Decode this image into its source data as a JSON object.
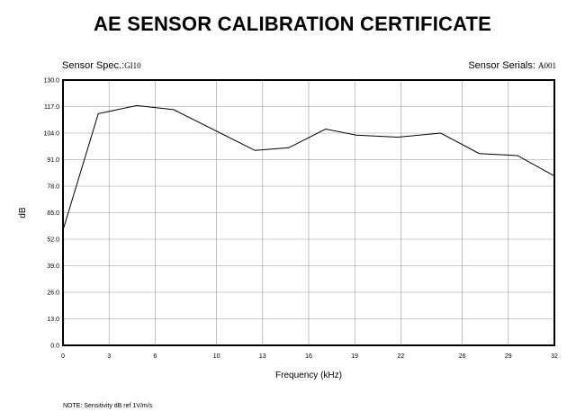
{
  "header": {
    "title": "AE SENSOR CALIBRATION CERTIFICATE",
    "spec_label": "Sensor Spec.:",
    "spec_value": "GI10",
    "serials_label": "Sensor Serials:",
    "serials_value": "A001"
  },
  "note": "NOTE:  Sensitivity dB ref 1V/m/s",
  "chart_data": {
    "type": "line",
    "xlabel": "Frequency (kHz)",
    "ylabel": "dB",
    "xlim": [
      0,
      32
    ],
    "ylim": [
      0,
      130
    ],
    "x_ticks": [
      0,
      3,
      6,
      10,
      13,
      16,
      19,
      22,
      26,
      29,
      32
    ],
    "y_ticks": [
      130.0,
      117.0,
      104.0,
      91.0,
      78.0,
      65.0,
      52.0,
      39.0,
      26.0,
      13.0,
      0.0
    ],
    "x_tick_labels": [
      "0",
      "3",
      "6",
      "10",
      "13",
      "16",
      "19",
      "22",
      "26",
      "29",
      "32"
    ],
    "y_tick_labels": [
      "130.0",
      "117.0",
      "104.0",
      "91.0",
      "78.0",
      "65.0",
      "52.0",
      "39.0",
      "26.0",
      "13.0",
      "0.0"
    ],
    "grid": true,
    "series": [
      {
        "x": [
          0,
          2.3,
          4.8,
          7.2,
          12.5,
          14.7,
          17.1,
          19.1,
          21.8,
          24.6,
          27.1,
          29.6,
          32
        ],
        "y": [
          56.5,
          113.5,
          117.5,
          115.5,
          95.5,
          96.8,
          106.0,
          103.0,
          102.0,
          104.0,
          94.0,
          93.0,
          83.0
        ]
      }
    ],
    "colors": {
      "line": "#000000",
      "grid": "#9a9a9a",
      "frame": "#000000"
    }
  }
}
